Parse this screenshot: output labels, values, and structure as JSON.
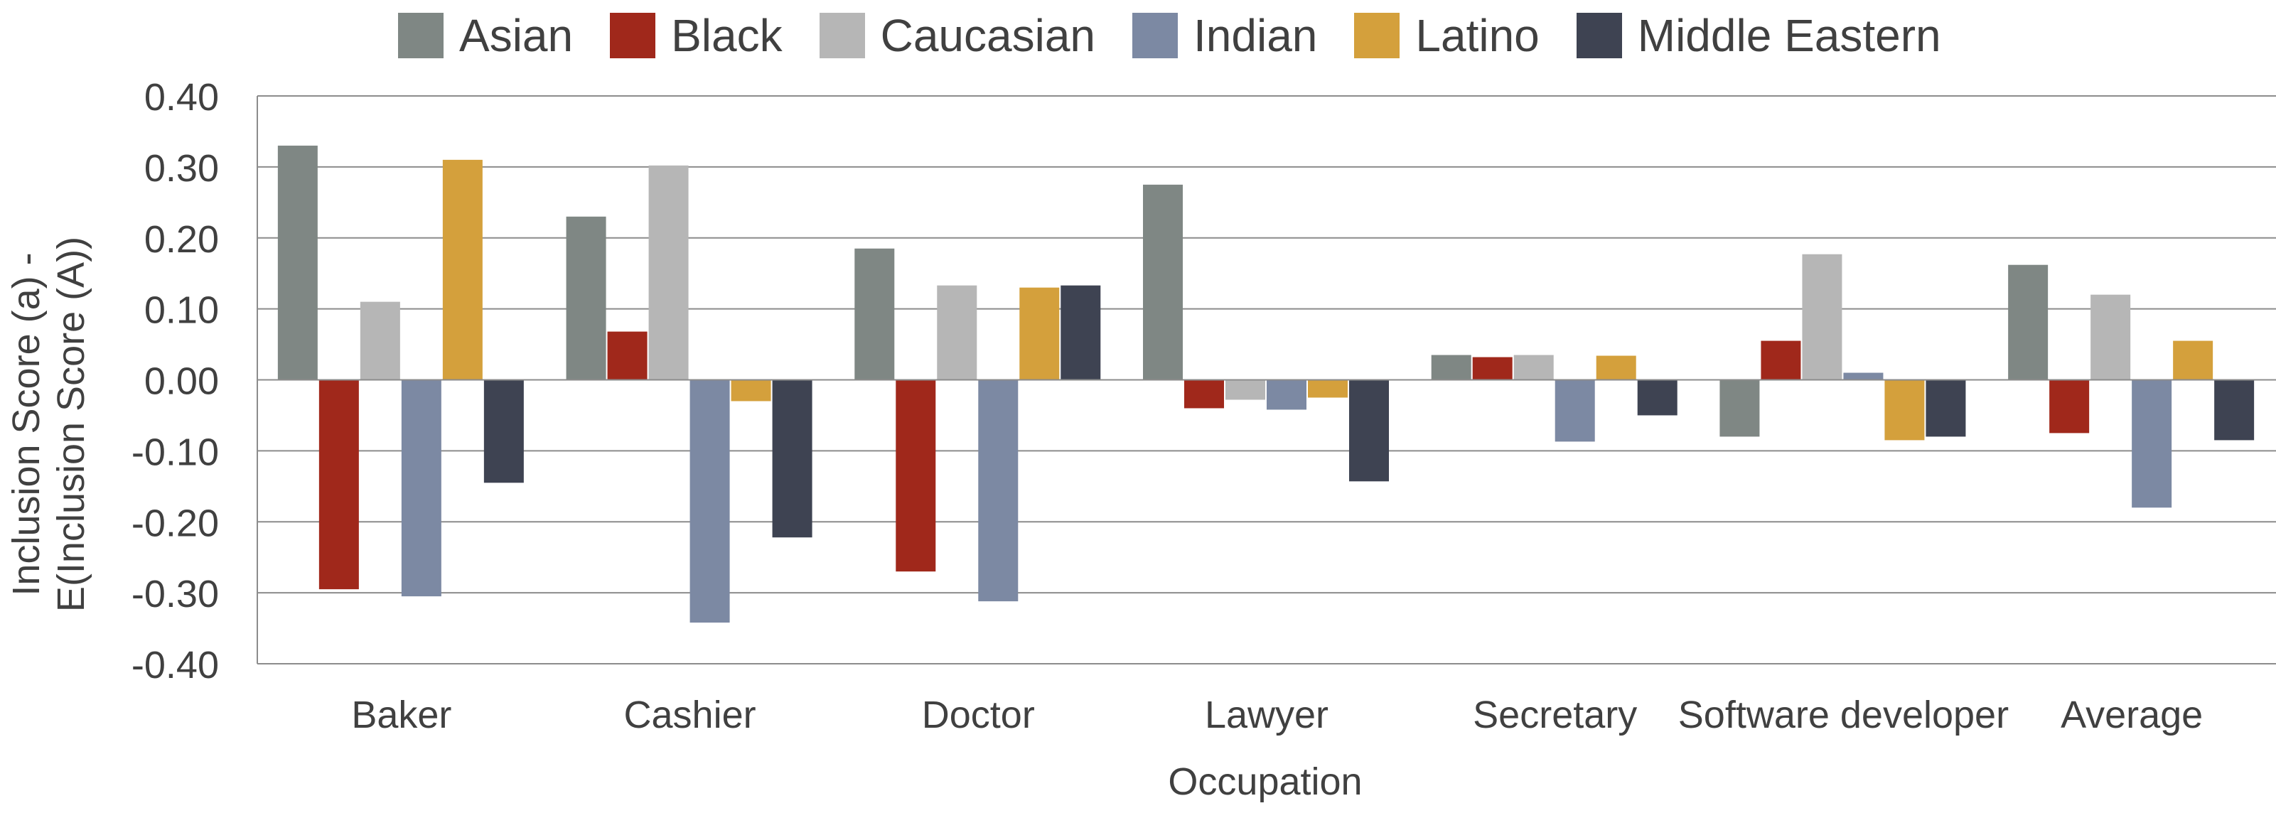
{
  "chart_data": {
    "type": "bar",
    "categories": [
      "Baker",
      "Cashier",
      "Doctor",
      "Lawyer",
      "Secretary",
      "Software developer",
      "Average"
    ],
    "series": [
      {
        "name": "Asian",
        "color": "#7f8784",
        "values": [
          0.33,
          0.23,
          0.185,
          0.275,
          0.035,
          -0.08,
          0.162
        ]
      },
      {
        "name": "Black",
        "color": "#a0281b",
        "values": [
          -0.295,
          0.068,
          -0.27,
          -0.04,
          0.032,
          0.055,
          -0.075
        ]
      },
      {
        "name": "Caucasian",
        "color": "#b6b6b6",
        "values": [
          0.11,
          0.302,
          0.133,
          -0.028,
          0.035,
          0.177,
          0.12
        ]
      },
      {
        "name": "Indian",
        "color": "#7c89a3",
        "values": [
          -0.305,
          -0.342,
          -0.312,
          -0.042,
          -0.087,
          0.01,
          -0.18
        ]
      },
      {
        "name": "Latino",
        "color": "#d4a03c",
        "values": [
          0.31,
          -0.03,
          0.13,
          -0.025,
          0.034,
          -0.085,
          0.055
        ]
      },
      {
        "name": "Middle Eastern",
        "color": "#3e4352",
        "values": [
          -0.145,
          -0.222,
          0.133,
          -0.143,
          -0.05,
          -0.08,
          -0.085
        ]
      }
    ],
    "xlabel": "Occupation",
    "ylabel_lines": [
      "Inclusion Score (a) -",
      "E(Inclusion Score (A))"
    ],
    "yticks": [
      "0.40",
      "0.30",
      "0.20",
      "0.10",
      "0.00",
      "-0.10",
      "-0.20",
      "-0.30",
      "-0.40"
    ],
    "ylim": [
      -0.4,
      0.4
    ],
    "grid": true,
    "legend_position": "top"
  }
}
